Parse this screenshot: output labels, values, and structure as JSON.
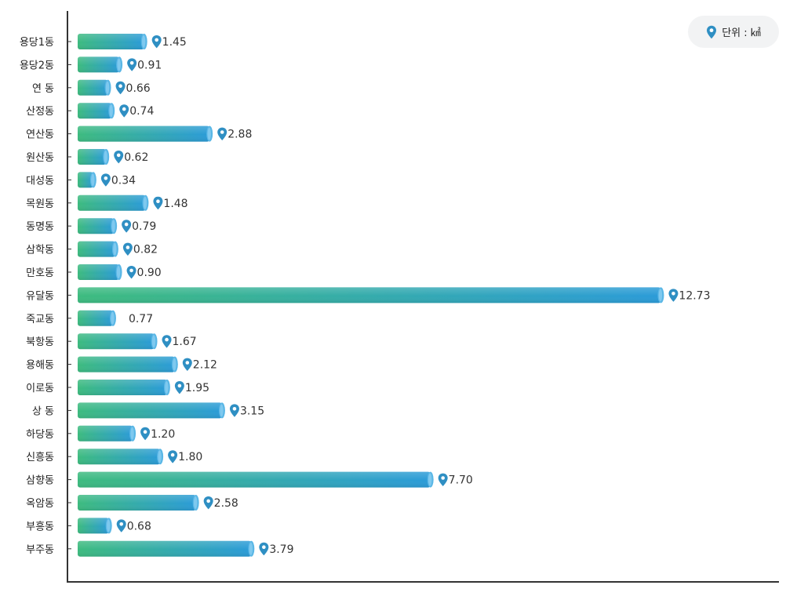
{
  "unit_label": "단위 : ㎢",
  "colors": {
    "bar_start": "#3dbb7f",
    "bar_end": "#2b9bd8",
    "pin": "#2f8fc3",
    "axis": "#333333"
  },
  "chart_data": {
    "type": "bar",
    "orientation": "horizontal",
    "title": "",
    "xlabel": "",
    "ylabel": "",
    "xlim": [
      0,
      14
    ],
    "grid": false,
    "categories": [
      "용당1동",
      "용당2동",
      "연  동",
      "산정동",
      "연산동",
      "원산동",
      "대성동",
      "목원동",
      "동명동",
      "삼학동",
      "만호동",
      "유달동",
      "죽교동",
      "북항동",
      "용해동",
      "이로동",
      "상  동",
      "하당동",
      "신흥동",
      "삼향동",
      "옥암동",
      "부흥동",
      "부주동"
    ],
    "values": [
      1.45,
      0.91,
      0.66,
      0.74,
      2.88,
      0.62,
      0.34,
      1.48,
      0.79,
      0.82,
      0.9,
      12.73,
      0.77,
      1.67,
      2.12,
      1.95,
      3.15,
      1.2,
      1.8,
      7.7,
      2.58,
      0.68,
      3.79
    ],
    "value_labels": [
      "1.45",
      "0.91",
      "0.66",
      "0.74",
      "2.88",
      "0.62",
      "0.34",
      "1.48",
      "0.79",
      "0.82",
      "0.90",
      "12.73",
      "0.77",
      "1.67",
      "2.12",
      "1.95",
      "3.15",
      "1.20",
      "1.80",
      "7.70",
      "2.58",
      "0.68",
      "3.79"
    ],
    "show_pin": [
      true,
      true,
      true,
      true,
      true,
      true,
      true,
      true,
      true,
      true,
      true,
      true,
      false,
      true,
      true,
      true,
      true,
      true,
      true,
      true,
      true,
      true,
      true
    ]
  }
}
